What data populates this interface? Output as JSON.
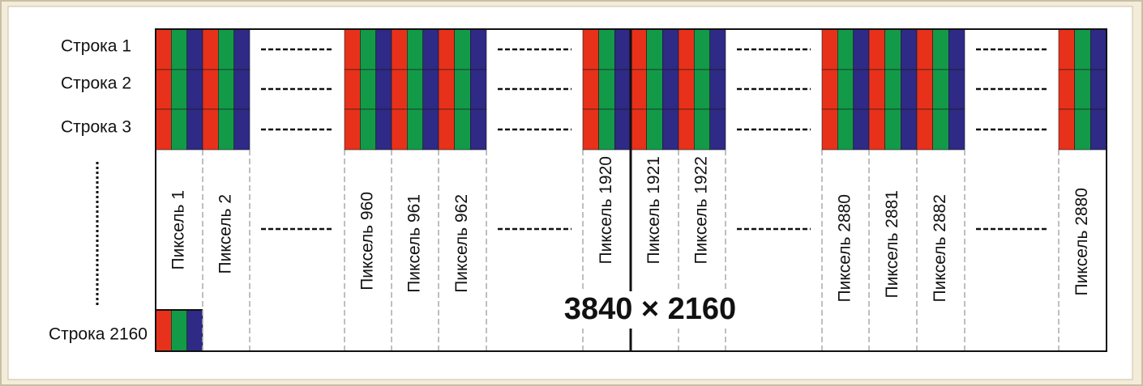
{
  "rows": [
    "Строка 1",
    "Строка 2",
    "Строка 3",
    "Строка 2160"
  ],
  "pixels": [
    "Пиксель 1",
    "Пиксель 2",
    "Пиксель 960",
    "Пиксель 961",
    "Пиксель 962",
    "Пиксель 1920",
    "Пиксель 1921",
    "Пиксель 1922",
    "Пиксель 2880",
    "Пиксель 2881",
    "Пиксель 2882",
    "Пиксель 2880"
  ],
  "resolution": "3840 × 2160"
}
